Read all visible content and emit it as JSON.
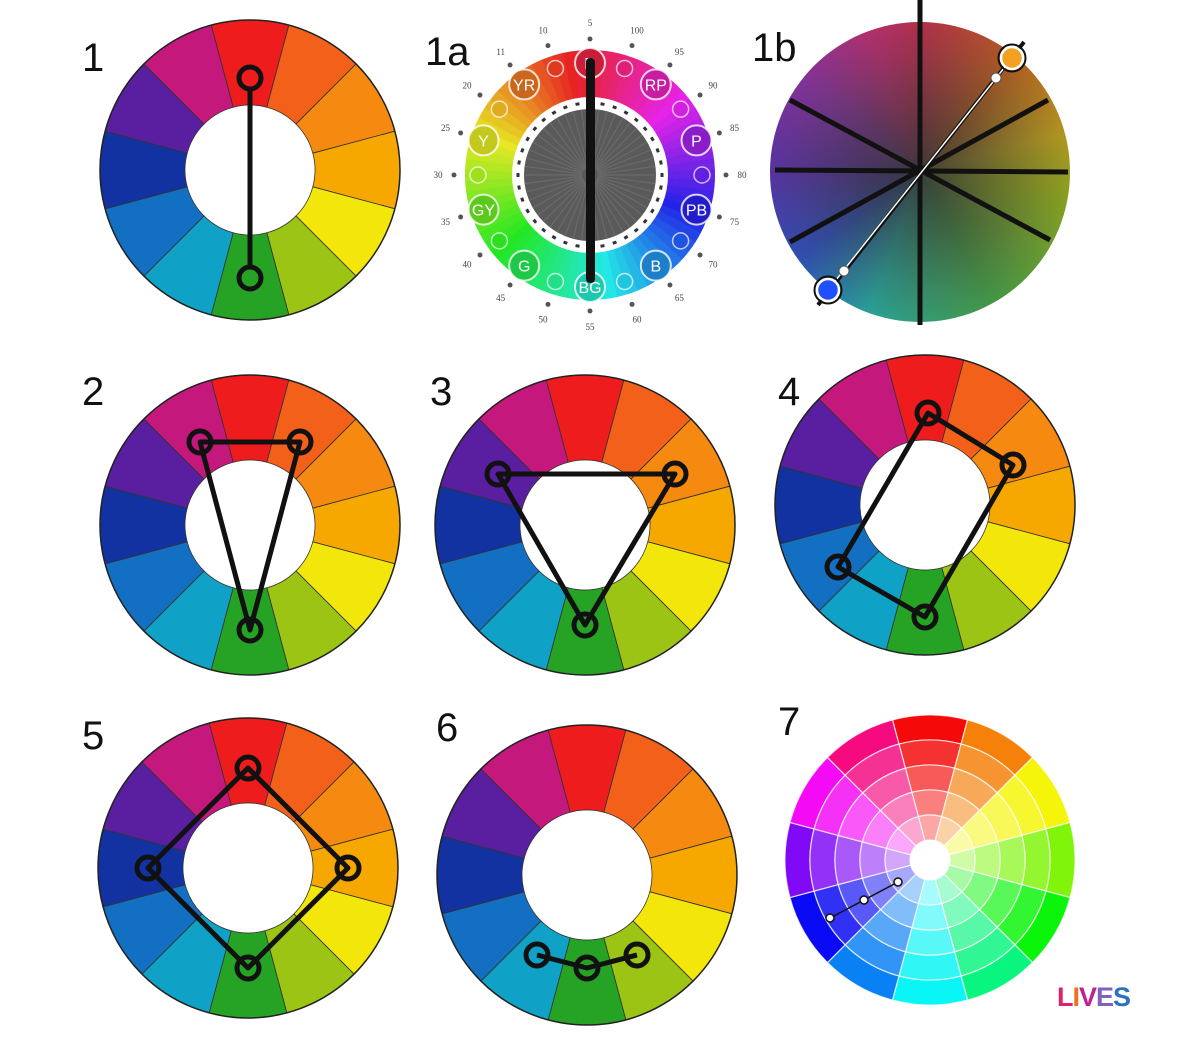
{
  "labels": {
    "w1": "1",
    "w1a": "1a",
    "w1b": "1b",
    "w2": "2",
    "w3": "3",
    "w4": "4",
    "w5": "5",
    "w6": "6",
    "w7": "7"
  },
  "wheel_colors": [
    "#ee1c1c",
    "#f2601a",
    "#f68a10",
    "#f7a800",
    "#f6c400",
    "#f3e60a",
    "#9cc414",
    "#26a324",
    "#10a2c6",
    "#136fc2",
    "#1232a2",
    "#5a1ea0",
    "#c4187c"
  ],
  "munsell": {
    "hues": [
      "R",
      "YR",
      "Y",
      "GY",
      "G",
      "BG",
      "B",
      "PB",
      "P",
      "RP"
    ],
    "numbers": [
      "5",
      "10",
      "11",
      "20",
      "25",
      "30",
      "35",
      "40",
      "45",
      "50",
      "55",
      "60",
      "65",
      "70",
      "75",
      "80",
      "85",
      "90",
      "95",
      "100"
    ]
  },
  "logo": {
    "text": "LIVES",
    "colors": [
      "#e0206a",
      "#f07020",
      "#c02090",
      "#8060c0",
      "#3070c0"
    ]
  }
}
